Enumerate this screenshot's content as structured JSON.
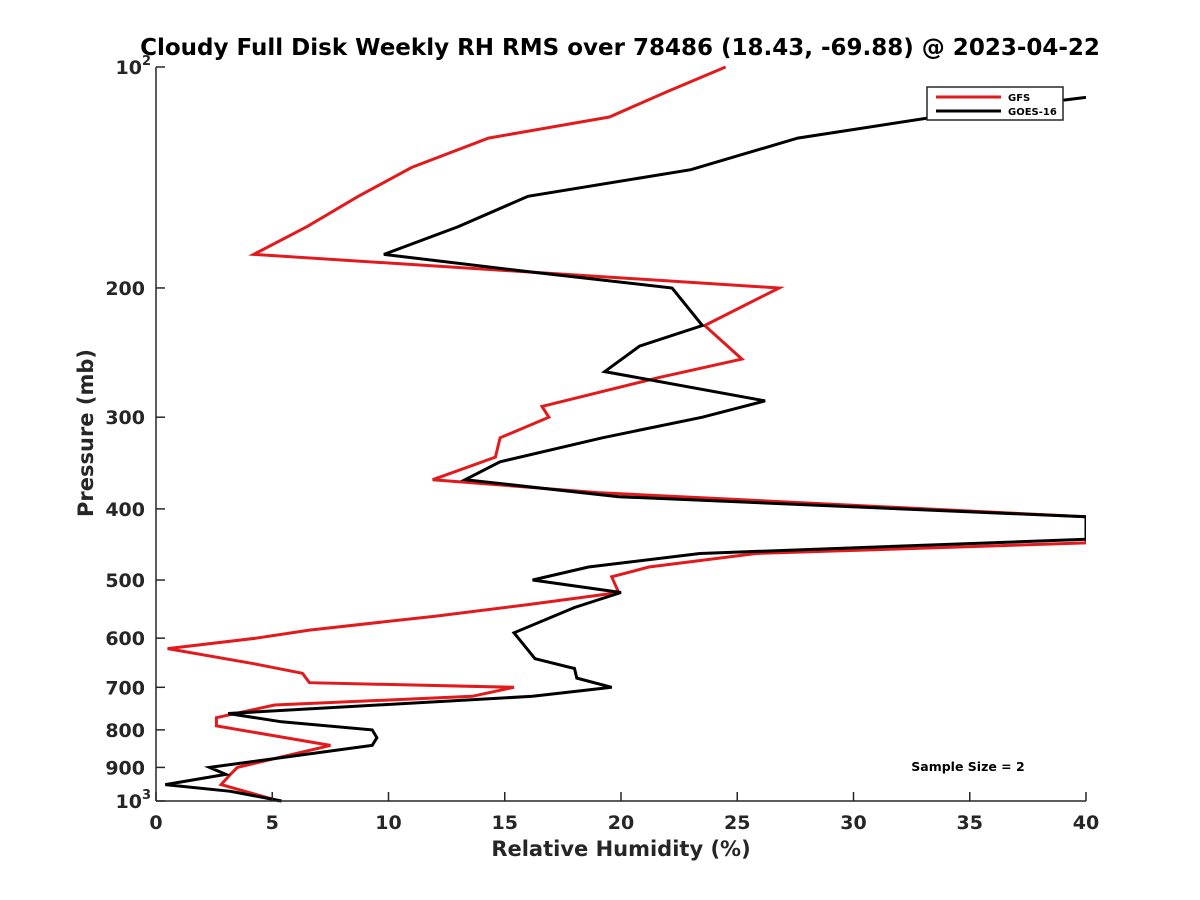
{
  "chart_data": {
    "type": "line",
    "title": "Cloudy Full Disk Weekly RH RMS over 78486 (18.43, -69.88) @ 2023-04-22",
    "xlabel": "Relative Humidity (%)",
    "ylabel": "Pressure (mb)",
    "xlim": [
      0,
      40
    ],
    "ylim": [
      100,
      1000
    ],
    "y_scale": "log",
    "y_reversed": true,
    "x_ticks": [
      0,
      5,
      10,
      15,
      20,
      25,
      30,
      35,
      40
    ],
    "x_tick_labels": [
      "0",
      "5",
      "10",
      "15",
      "20",
      "25",
      "30",
      "35",
      "40"
    ],
    "y_ticks": [
      100,
      200,
      300,
      400,
      500,
      600,
      700,
      800,
      900,
      1000
    ],
    "y_tick_labels": [
      {
        "base": "10",
        "exp": "2"
      },
      {
        "base": "200"
      },
      {
        "base": "300"
      },
      {
        "base": "400"
      },
      {
        "base": "500"
      },
      {
        "base": "600"
      },
      {
        "base": "700"
      },
      {
        "base": "800"
      },
      {
        "base": "900"
      },
      {
        "base": "10",
        "exp": "3"
      }
    ],
    "grid": false,
    "legend_position": "top-right",
    "annotation": "Sample Size = 2",
    "series": [
      {
        "name": "GFS",
        "color": "#e31a1c",
        "points": [
          [
            24.5,
            100
          ],
          [
            22.0,
            108
          ],
          [
            19.5,
            117
          ],
          [
            14.3,
            125
          ],
          [
            11.0,
            137
          ],
          [
            8.7,
            150
          ],
          [
            6.5,
            165
          ],
          [
            4.2,
            180
          ],
          [
            26.8,
            200
          ],
          [
            23.6,
            225
          ],
          [
            25.2,
            250
          ],
          [
            21.6,
            265
          ],
          [
            16.6,
            290
          ],
          [
            16.9,
            300
          ],
          [
            14.8,
            320
          ],
          [
            14.6,
            340
          ],
          [
            11.9,
            365
          ],
          [
            19.0,
            380
          ],
          [
            40.0,
            410
          ],
          [
            40.0,
            445
          ],
          [
            25.8,
            460
          ],
          [
            21.2,
            480
          ],
          [
            19.6,
            495
          ],
          [
            19.9,
            520
          ],
          [
            16.0,
            540
          ],
          [
            12.0,
            560
          ],
          [
            6.6,
            585
          ],
          [
            4.3,
            600
          ],
          [
            0.5,
            620
          ],
          [
            4.2,
            650
          ],
          [
            6.3,
            670
          ],
          [
            6.6,
            690
          ],
          [
            15.4,
            700
          ],
          [
            13.6,
            720
          ],
          [
            5.1,
            740
          ],
          [
            2.6,
            770
          ],
          [
            2.6,
            790
          ],
          [
            7.5,
            840
          ],
          [
            3.5,
            900
          ],
          [
            3.2,
            920
          ],
          [
            2.8,
            950
          ],
          [
            5.3,
            1000
          ]
        ]
      },
      {
        "name": "GOES-16",
        "color": "#000000",
        "points": [
          [
            40.0,
            110
          ],
          [
            35.0,
            115
          ],
          [
            27.6,
            125
          ],
          [
            23.0,
            138
          ],
          [
            16.0,
            150
          ],
          [
            13.0,
            165
          ],
          [
            9.8,
            180
          ],
          [
            16.0,
            190
          ],
          [
            22.2,
            200
          ],
          [
            23.5,
            225
          ],
          [
            20.8,
            240
          ],
          [
            19.3,
            260
          ],
          [
            26.2,
            285
          ],
          [
            23.5,
            300
          ],
          [
            19.2,
            320
          ],
          [
            14.8,
            345
          ],
          [
            13.3,
            365
          ],
          [
            19.9,
            385
          ],
          [
            40.0,
            410
          ],
          [
            40.0,
            440
          ],
          [
            23.4,
            460
          ],
          [
            18.6,
            480
          ],
          [
            16.2,
            500
          ],
          [
            20.0,
            520
          ],
          [
            18.0,
            545
          ],
          [
            17.1,
            560
          ],
          [
            15.4,
            590
          ],
          [
            16.3,
            640
          ],
          [
            18.0,
            660
          ],
          [
            18.1,
            680
          ],
          [
            19.6,
            700
          ],
          [
            16.2,
            720
          ],
          [
            3.1,
            760
          ],
          [
            5.4,
            780
          ],
          [
            9.3,
            800
          ],
          [
            9.5,
            820
          ],
          [
            9.3,
            840
          ],
          [
            2.3,
            900
          ],
          [
            3.0,
            920
          ],
          [
            0.4,
            950
          ],
          [
            3.2,
            970
          ],
          [
            5.4,
            1000
          ]
        ]
      }
    ]
  }
}
